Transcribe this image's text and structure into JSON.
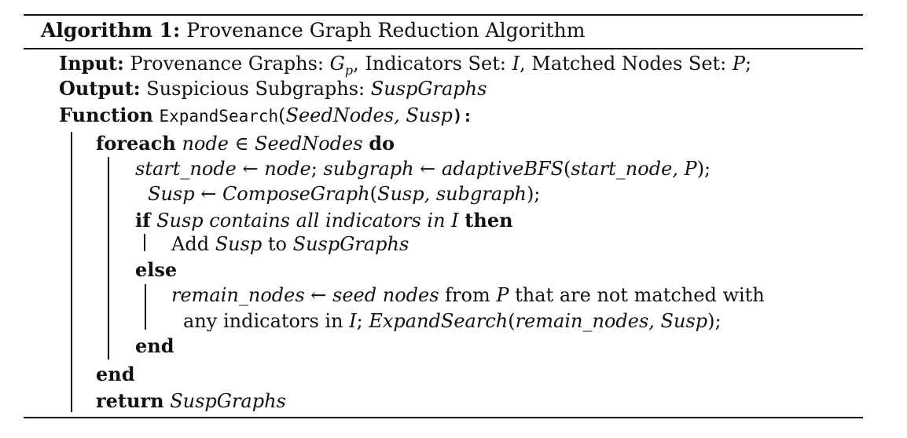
{
  "algorithm": {
    "label": "Algorithm 1:",
    "title": "Provenance Graph Reduction Algorithm"
  },
  "input": {
    "kw": "Input:",
    "t1": "Provenance Graphs: ",
    "gp_base": "G",
    "gp_sub": "p",
    "t2": ", Indicators Set: ",
    "var_i": "I",
    "t3": ", Matched Nodes Set: ",
    "var_p": "P",
    "t4": ";"
  },
  "output": {
    "kw": "Output:",
    "t1": "Suspicious Subgraphs: ",
    "var": "SuspGraphs"
  },
  "function": {
    "kw": "Function",
    "name": "ExpandSearch",
    "open": "(",
    "args": "SeedNodes, Susp",
    "close": "):"
  },
  "foreach": {
    "kw": "foreach",
    "expr": "node ∈ SeedNodes",
    "do": "do"
  },
  "stmt1": {
    "a": "start_node ← node",
    "b": "; ",
    "c": "subgraph ← adaptiveBFS",
    "d": "(",
    "e": "start_node, P",
    "f": ");"
  },
  "stmt2": {
    "a": "Susp ← ComposeGraph",
    "b": "(",
    "c": "Susp, subgraph",
    "d": ");"
  },
  "if_line": {
    "kw": "if",
    "cond": "Susp contains all indicators in I",
    "then": "then"
  },
  "add_line": {
    "t1": "Add ",
    "v1": "Susp",
    "t2": " to ",
    "v2": "SuspGraphs"
  },
  "else_kw": "else",
  "remain1": {
    "v1": "remain_nodes ← seed nodes",
    "t1": " from ",
    "v2": "P",
    "t2": " that are not matched with"
  },
  "remain2": {
    "t1": "any indicators in ",
    "v1": "I",
    "t2": "; ",
    "v2": "ExpandSearch",
    "t3": "(",
    "v3": "remain_nodes, Susp",
    "t4": ");"
  },
  "end_inner": "end",
  "end_outer": "end",
  "return_line": {
    "kw": "return",
    "var": "SuspGraphs"
  }
}
